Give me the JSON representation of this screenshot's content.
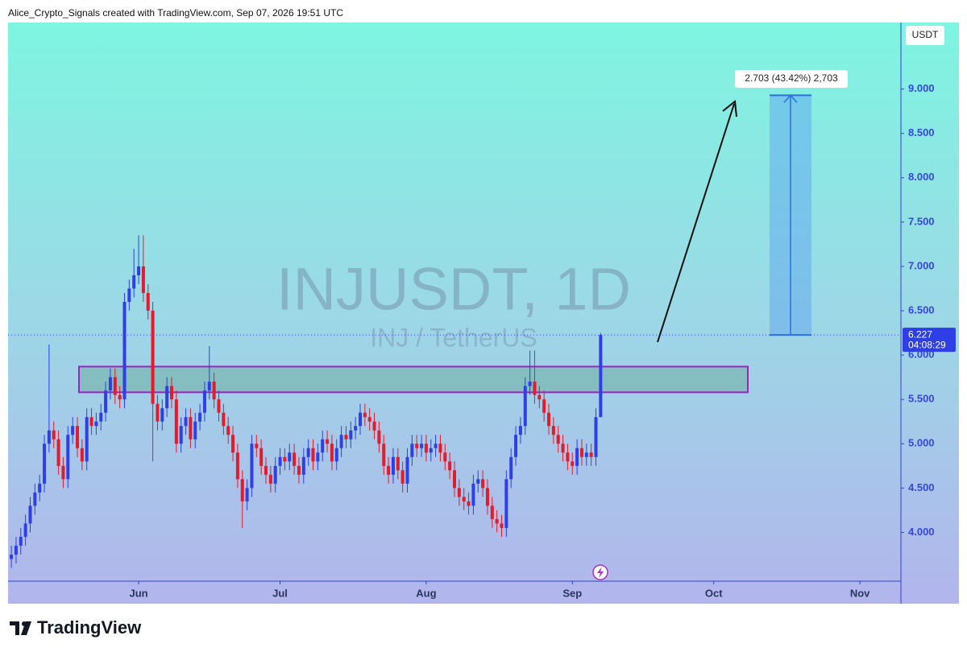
{
  "header": "Alice_Crypto_Signals created with TradingView.com, Sep 07, 2026 19:51 UTC",
  "chart_data": {
    "type": "candlestick",
    "title": "INJUSDT, 1D",
    "subtitle": "INJ / TetherUS",
    "currency": "USDT",
    "up_color": "#2f3fe6",
    "down_color": "#e21b2d",
    "open": [
      3.7,
      3.75,
      3.85,
      3.95,
      4.1,
      4.3,
      4.45,
      4.55,
      5.0,
      5.15,
      5.05,
      4.75,
      4.6,
      5.1,
      5.2,
      4.95,
      4.8,
      5.3,
      5.2,
      5.25,
      5.35,
      5.6,
      5.75,
      5.55,
      5.5,
      6.6,
      6.75,
      6.9,
      7.0,
      6.7,
      6.5,
      5.45,
      5.25,
      5.4,
      5.65,
      5.5,
      5.0,
      5.2,
      5.3,
      5.05,
      5.25,
      5.35,
      5.6,
      5.7,
      5.5,
      5.35,
      5.2,
      5.1,
      4.9,
      4.6,
      4.35,
      4.5,
      5.0,
      4.95,
      4.75,
      4.65,
      4.55,
      4.75,
      4.85,
      4.8,
      4.9,
      4.75,
      4.65,
      4.85,
      4.95,
      4.8,
      4.9,
      5.05,
      5.0,
      4.8,
      4.95,
      5.1,
      5.05,
      5.15,
      5.2,
      5.35,
      5.3,
      5.25,
      5.15,
      5.0,
      4.75,
      4.65,
      4.85,
      4.7,
      4.55,
      4.85,
      5.0,
      4.95,
      5.0,
      4.9,
      4.95,
      5.0,
      4.9,
      4.8,
      4.7,
      4.5,
      4.4,
      4.35,
      4.3,
      4.55,
      4.6,
      4.5,
      4.3,
      4.15,
      4.1,
      4.05,
      4.6,
      4.85,
      5.1,
      5.2,
      5.65,
      5.7,
      5.55,
      5.5,
      5.35,
      5.2,
      5.1,
      5.0,
      4.9,
      4.8,
      4.75,
      4.95,
      4.85,
      4.9,
      4.85,
      5.3
    ],
    "high": [
      3.85,
      3.95,
      4.05,
      4.2,
      4.4,
      4.55,
      4.65,
      5.1,
      6.12,
      5.25,
      5.15,
      4.85,
      5.2,
      5.3,
      5.3,
      5.05,
      5.4,
      5.4,
      5.35,
      5.45,
      5.7,
      5.85,
      5.85,
      5.65,
      6.7,
      6.85,
      7.2,
      7.35,
      7.35,
      6.8,
      6.6,
      5.55,
      5.5,
      5.75,
      5.75,
      5.6,
      5.3,
      5.4,
      5.4,
      5.35,
      5.45,
      5.7,
      6.1,
      5.8,
      5.6,
      5.45,
      5.3,
      5.2,
      5.0,
      4.7,
      4.6,
      5.1,
      5.1,
      5.05,
      4.85,
      4.75,
      4.85,
      4.95,
      4.95,
      5.0,
      5.0,
      4.85,
      4.95,
      5.05,
      5.05,
      5.0,
      5.15,
      5.15,
      5.1,
      5.05,
      5.2,
      5.2,
      5.25,
      5.3,
      5.45,
      5.45,
      5.4,
      5.35,
      5.25,
      5.1,
      4.85,
      4.95,
      4.95,
      4.8,
      4.95,
      5.1,
      5.1,
      5.1,
      5.1,
      5.05,
      5.1,
      5.1,
      5.0,
      4.9,
      4.8,
      4.6,
      4.5,
      4.45,
      4.65,
      4.7,
      4.7,
      4.6,
      4.4,
      4.25,
      4.2,
      4.7,
      4.95,
      5.2,
      5.3,
      5.75,
      6.05,
      6.05,
      5.65,
      5.6,
      5.45,
      5.3,
      5.2,
      5.1,
      5.0,
      4.9,
      5.05,
      5.05,
      5.0,
      5.0,
      5.4,
      6.25
    ],
    "low": [
      3.6,
      3.65,
      3.75,
      3.85,
      4.0,
      4.2,
      4.35,
      4.45,
      4.9,
      4.95,
      4.65,
      4.5,
      4.5,
      5.0,
      4.85,
      4.7,
      4.7,
      5.1,
      5.1,
      5.15,
      5.25,
      5.5,
      5.45,
      5.4,
      5.4,
      6.5,
      6.65,
      6.8,
      6.6,
      6.4,
      4.8,
      5.15,
      5.15,
      5.3,
      5.4,
      4.9,
      4.9,
      5.1,
      4.95,
      4.95,
      5.15,
      5.25,
      5.5,
      5.4,
      5.25,
      5.1,
      5.0,
      4.8,
      4.5,
      4.05,
      4.25,
      4.4,
      4.85,
      4.65,
      4.55,
      4.45,
      4.45,
      4.65,
      4.7,
      4.7,
      4.65,
      4.55,
      4.55,
      4.75,
      4.7,
      4.7,
      4.8,
      4.9,
      4.7,
      4.7,
      4.85,
      4.95,
      4.95,
      5.05,
      5.1,
      5.2,
      5.15,
      5.05,
      4.9,
      4.65,
      4.55,
      4.55,
      4.6,
      4.45,
      4.45,
      4.75,
      4.85,
      4.85,
      4.8,
      4.8,
      4.85,
      4.8,
      4.7,
      4.6,
      4.4,
      4.3,
      4.25,
      4.2,
      4.2,
      4.45,
      4.4,
      4.2,
      4.05,
      4.0,
      3.95,
      3.95,
      4.5,
      4.75,
      5.0,
      5.1,
      5.55,
      5.45,
      5.4,
      5.25,
      5.1,
      5.0,
      4.9,
      4.8,
      4.7,
      4.65,
      4.65,
      4.75,
      4.75,
      4.75,
      4.75,
      5.3
    ],
    "close": [
      3.75,
      3.85,
      3.95,
      4.1,
      4.3,
      4.45,
      4.55,
      5.0,
      5.15,
      5.05,
      4.75,
      4.6,
      5.1,
      5.2,
      4.95,
      4.8,
      5.3,
      5.2,
      5.25,
      5.35,
      5.6,
      5.75,
      5.55,
      5.5,
      6.6,
      6.75,
      6.9,
      7.0,
      6.7,
      6.5,
      5.45,
      5.25,
      5.4,
      5.65,
      5.5,
      5.0,
      5.2,
      5.3,
      5.05,
      5.25,
      5.35,
      5.6,
      5.7,
      5.5,
      5.35,
      5.2,
      5.1,
      4.9,
      4.6,
      4.35,
      4.5,
      5.0,
      4.95,
      4.75,
      4.65,
      4.55,
      4.75,
      4.85,
      4.8,
      4.9,
      4.75,
      4.65,
      4.85,
      4.95,
      4.8,
      4.9,
      5.05,
      5.0,
      4.8,
      4.95,
      5.1,
      5.05,
      5.15,
      5.2,
      5.35,
      5.3,
      5.25,
      5.15,
      5.0,
      4.75,
      4.65,
      4.85,
      4.7,
      4.55,
      4.85,
      5.0,
      4.95,
      5.0,
      4.9,
      4.95,
      5.0,
      4.9,
      4.8,
      4.7,
      4.5,
      4.4,
      4.35,
      4.3,
      4.55,
      4.6,
      4.5,
      4.3,
      4.15,
      4.1,
      4.05,
      4.6,
      4.85,
      5.1,
      5.2,
      5.65,
      5.7,
      5.55,
      5.5,
      5.35,
      5.2,
      5.1,
      5.0,
      4.9,
      4.8,
      4.75,
      4.95,
      4.85,
      4.9,
      4.85,
      5.3,
      6.227
    ],
    "ylim": [
      3.45,
      9.75
    ],
    "yticks": [
      {
        "value": 4,
        "label": "4.000"
      },
      {
        "value": 4.5,
        "label": "4.500"
      },
      {
        "value": 5,
        "label": "5.000"
      },
      {
        "value": 5.5,
        "label": "5.500"
      },
      {
        "value": 6,
        "label": "6.000"
      },
      {
        "value": 6.5,
        "label": "6.500"
      },
      {
        "value": 7,
        "label": "7.000"
      },
      {
        "value": 7.5,
        "label": "7.500"
      },
      {
        "value": 8,
        "label": "8.000"
      },
      {
        "value": 8.5,
        "label": "8.500"
      },
      {
        "value": 9,
        "label": "9.000"
      }
    ],
    "xlim": [
      -0.7,
      188.7
    ],
    "xticks": [
      {
        "value": 27,
        "label": "Jun"
      },
      {
        "value": 57,
        "label": "Jul"
      },
      {
        "value": 88,
        "label": "Aug"
      },
      {
        "value": 119,
        "label": "Sep"
      },
      {
        "value": 149,
        "label": "Oct"
      },
      {
        "value": 180,
        "label": "Nov"
      }
    ],
    "countdown": "04:08:29",
    "zone": {
      "low": 5.58,
      "high": 5.87
    },
    "measure": {
      "from": 6.227,
      "to": 8.93,
      "label": "2.703 (43.42%) 2,703"
    }
  },
  "footer": {
    "logo": "TradingView"
  }
}
